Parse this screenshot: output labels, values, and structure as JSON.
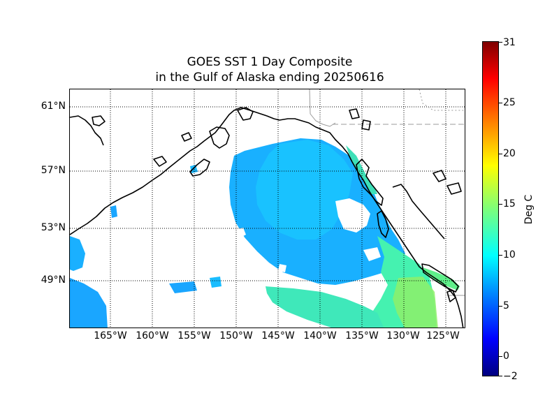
{
  "title": {
    "line1": "GOES SST 1 Day Composite",
    "line2": "in the Gulf of Alaska ending 20250616"
  },
  "map": {
    "latitude_labels": [
      "61°N",
      "57°N",
      "53°N",
      "49°N"
    ],
    "longitude_labels": [
      "165°W",
      "160°W",
      "155°W",
      "150°W",
      "145°W",
      "140°W",
      "135°W",
      "130°W",
      "125°W"
    ],
    "gridlines": "dotted",
    "colors": {
      "coast": "#000000",
      "border": "#999999",
      "sst_main": "#18b6ff",
      "sst_warm": "#4dffa8",
      "sst_warmer": "#9cff5e"
    }
  },
  "colorbar": {
    "label": "Deg C",
    "ticks": [
      "31",
      "25",
      "20",
      "15",
      "10",
      "5",
      "0",
      "−2"
    ],
    "min": -2,
    "max": 31
  }
}
